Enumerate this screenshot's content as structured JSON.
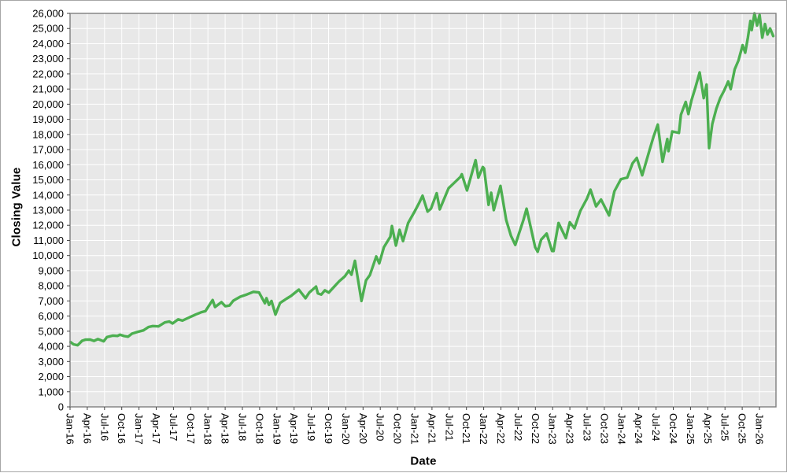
{
  "chart_data": {
    "type": "line",
    "title": "",
    "xlabel": "Date",
    "ylabel": "Closing Value",
    "ylim": [
      0,
      26000
    ],
    "y_tick_step": 1000,
    "y_tick_format": "thousands-comma",
    "grid": true,
    "legend": false,
    "plot_bg": "#e8e8e8",
    "grid_color": "#ffffff",
    "axis_color": "#7f7f7f",
    "tick_color": "#444444",
    "x_tick_labels": [
      "Jan-16",
      "Apr-16",
      "Jul-16",
      "Oct-16",
      "Jan-17",
      "Apr-17",
      "Jul-17",
      "Oct-17",
      "Jan-18",
      "Apr-18",
      "Jul-18",
      "Oct-18",
      "Jan-19",
      "Apr-19",
      "Jul-19",
      "Oct-19",
      "Jan-20",
      "Apr-20",
      "Jul-20",
      "Oct-20",
      "Jan-21",
      "Apr-21",
      "Jul-21",
      "Oct-21",
      "Jan-22",
      "Apr-22",
      "Jul-22",
      "Oct-22",
      "Jan-23",
      "Apr-23",
      "Jul-23",
      "Oct-23",
      "Jan-24",
      "Apr-24",
      "Jul-24",
      "Oct-24",
      "Jan-25",
      "Apr-25",
      "Jul-25",
      "Oct-25",
      "Jan-26"
    ],
    "series": [
      {
        "name": "Closing Value",
        "color": "#4caf50",
        "points": [
          [
            "2016-01-04",
            4280
          ],
          [
            "2016-01-20",
            4130
          ],
          [
            "2016-02-11",
            4070
          ],
          [
            "2016-03-04",
            4370
          ],
          [
            "2016-03-21",
            4440
          ],
          [
            "2016-04-15",
            4450
          ],
          [
            "2016-05-06",
            4360
          ],
          [
            "2016-05-27",
            4480
          ],
          [
            "2016-06-27",
            4330
          ],
          [
            "2016-07-14",
            4610
          ],
          [
            "2016-08-15",
            4710
          ],
          [
            "2016-09-09",
            4690
          ],
          [
            "2016-09-22",
            4770
          ],
          [
            "2016-10-14",
            4680
          ],
          [
            "2016-11-04",
            4640
          ],
          [
            "2016-11-25",
            4840
          ],
          [
            "2016-12-20",
            4940
          ],
          [
            "2017-01-25",
            5060
          ],
          [
            "2017-02-21",
            5280
          ],
          [
            "2017-03-13",
            5340
          ],
          [
            "2017-04-13",
            5320
          ],
          [
            "2017-05-16",
            5580
          ],
          [
            "2017-06-09",
            5640
          ],
          [
            "2017-06-27",
            5510
          ],
          [
            "2017-07-26",
            5780
          ],
          [
            "2017-08-18",
            5700
          ],
          [
            "2017-09-13",
            5850
          ],
          [
            "2017-10-27",
            6100
          ],
          [
            "2017-11-28",
            6260
          ],
          [
            "2017-12-18",
            6330
          ],
          [
            "2018-01-26",
            7060
          ],
          [
            "2018-02-08",
            6600
          ],
          [
            "2018-03-12",
            6920
          ],
          [
            "2018-04-02",
            6650
          ],
          [
            "2018-04-24",
            6700
          ],
          [
            "2018-05-14",
            7020
          ],
          [
            "2018-06-20",
            7280
          ],
          [
            "2018-07-25",
            7430
          ],
          [
            "2018-08-29",
            7600
          ],
          [
            "2018-09-28",
            7560
          ],
          [
            "2018-10-29",
            6850
          ],
          [
            "2018-11-07",
            7180
          ],
          [
            "2018-11-20",
            6740
          ],
          [
            "2018-12-03",
            7000
          ],
          [
            "2018-12-24",
            6100
          ],
          [
            "2019-01-18",
            6870
          ],
          [
            "2019-02-22",
            7150
          ],
          [
            "2019-03-15",
            7330
          ],
          [
            "2019-04-26",
            7750
          ],
          [
            "2019-05-31",
            7180
          ],
          [
            "2019-06-20",
            7550
          ],
          [
            "2019-07-26",
            7950
          ],
          [
            "2019-08-05",
            7500
          ],
          [
            "2019-08-23",
            7420
          ],
          [
            "2019-09-12",
            7700
          ],
          [
            "2019-10-02",
            7550
          ],
          [
            "2019-10-25",
            7870
          ],
          [
            "2019-11-27",
            8300
          ],
          [
            "2019-12-26",
            8620
          ],
          [
            "2020-01-17",
            9000
          ],
          [
            "2020-01-31",
            8730
          ],
          [
            "2020-02-19",
            9650
          ],
          [
            "2020-03-23",
            7000
          ],
          [
            "2020-04-17",
            8360
          ],
          [
            "2020-05-07",
            8710
          ],
          [
            "2020-06-10",
            9940
          ],
          [
            "2020-06-26",
            9480
          ],
          [
            "2020-07-20",
            10550
          ],
          [
            "2020-08-24",
            11250
          ],
          [
            "2020-09-02",
            11950
          ],
          [
            "2020-09-23",
            10660
          ],
          [
            "2020-10-12",
            11700
          ],
          [
            "2020-10-30",
            10950
          ],
          [
            "2020-11-27",
            12150
          ],
          [
            "2020-12-28",
            12850
          ],
          [
            "2021-01-25",
            13500
          ],
          [
            "2021-02-12",
            13950
          ],
          [
            "2021-03-08",
            12900
          ],
          [
            "2021-03-26",
            13100
          ],
          [
            "2021-04-26",
            14120
          ],
          [
            "2021-05-12",
            13050
          ],
          [
            "2021-06-28",
            14450
          ],
          [
            "2021-07-23",
            14750
          ],
          [
            "2021-08-30",
            15200
          ],
          [
            "2021-09-07",
            15370
          ],
          [
            "2021-10-04",
            14300
          ],
          [
            "2021-11-19",
            16300
          ],
          [
            "2021-12-03",
            15150
          ],
          [
            "2021-12-27",
            15850
          ],
          [
            "2022-01-03",
            15750
          ],
          [
            "2022-01-27",
            13350
          ],
          [
            "2022-02-10",
            14150
          ],
          [
            "2022-02-24",
            13000
          ],
          [
            "2022-03-29",
            14600
          ],
          [
            "2022-04-29",
            12350
          ],
          [
            "2022-05-24",
            11300
          ],
          [
            "2022-06-16",
            10700
          ],
          [
            "2022-07-29",
            12350
          ],
          [
            "2022-08-15",
            13100
          ],
          [
            "2022-09-30",
            10550
          ],
          [
            "2022-10-13",
            10250
          ],
          [
            "2022-11-01",
            11050
          ],
          [
            "2022-11-30",
            11450
          ],
          [
            "2022-12-28",
            10300
          ],
          [
            "2023-01-06",
            10300
          ],
          [
            "2023-02-02",
            12150
          ],
          [
            "2023-03-10",
            11150
          ],
          [
            "2023-03-31",
            12200
          ],
          [
            "2023-04-25",
            11800
          ],
          [
            "2023-05-26",
            12950
          ],
          [
            "2023-06-30",
            13750
          ],
          [
            "2023-07-19",
            14350
          ],
          [
            "2023-08-18",
            13250
          ],
          [
            "2023-09-14",
            13700
          ],
          [
            "2023-10-26",
            12650
          ],
          [
            "2023-11-24",
            14250
          ],
          [
            "2023-12-28",
            15050
          ],
          [
            "2024-01-31",
            15150
          ],
          [
            "2024-02-29",
            16100
          ],
          [
            "2024-03-21",
            16450
          ],
          [
            "2024-04-19",
            15300
          ],
          [
            "2024-05-28",
            17000
          ],
          [
            "2024-06-18",
            17850
          ],
          [
            "2024-07-10",
            18650
          ],
          [
            "2024-08-05",
            16200
          ],
          [
            "2024-08-30",
            17700
          ],
          [
            "2024-09-06",
            16900
          ],
          [
            "2024-09-26",
            18200
          ],
          [
            "2024-10-31",
            18100
          ],
          [
            "2024-11-11",
            19300
          ],
          [
            "2024-12-06",
            20150
          ],
          [
            "2024-12-20",
            19350
          ],
          [
            "2025-01-06",
            20250
          ],
          [
            "2025-01-27",
            21100
          ],
          [
            "2025-02-19",
            22100
          ],
          [
            "2025-03-10",
            20400
          ],
          [
            "2025-03-25",
            21300
          ],
          [
            "2025-04-08",
            17100
          ],
          [
            "2025-04-25",
            18700
          ],
          [
            "2025-05-16",
            19700
          ],
          [
            "2025-06-06",
            20400
          ],
          [
            "2025-06-27",
            20900
          ],
          [
            "2025-07-18",
            21500
          ],
          [
            "2025-08-01",
            21000
          ],
          [
            "2025-08-22",
            22300
          ],
          [
            "2025-09-12",
            22900
          ],
          [
            "2025-10-03",
            23900
          ],
          [
            "2025-10-17",
            23400
          ],
          [
            "2025-10-31",
            24400
          ],
          [
            "2025-11-14",
            25500
          ],
          [
            "2025-11-21",
            24900
          ],
          [
            "2025-12-05",
            26000
          ],
          [
            "2025-12-19",
            25200
          ],
          [
            "2026-01-02",
            25900
          ],
          [
            "2026-01-16",
            24400
          ],
          [
            "2026-01-30",
            25300
          ],
          [
            "2026-02-13",
            24600
          ],
          [
            "2026-02-27",
            25000
          ],
          [
            "2026-03-13",
            24500
          ]
        ]
      }
    ]
  }
}
